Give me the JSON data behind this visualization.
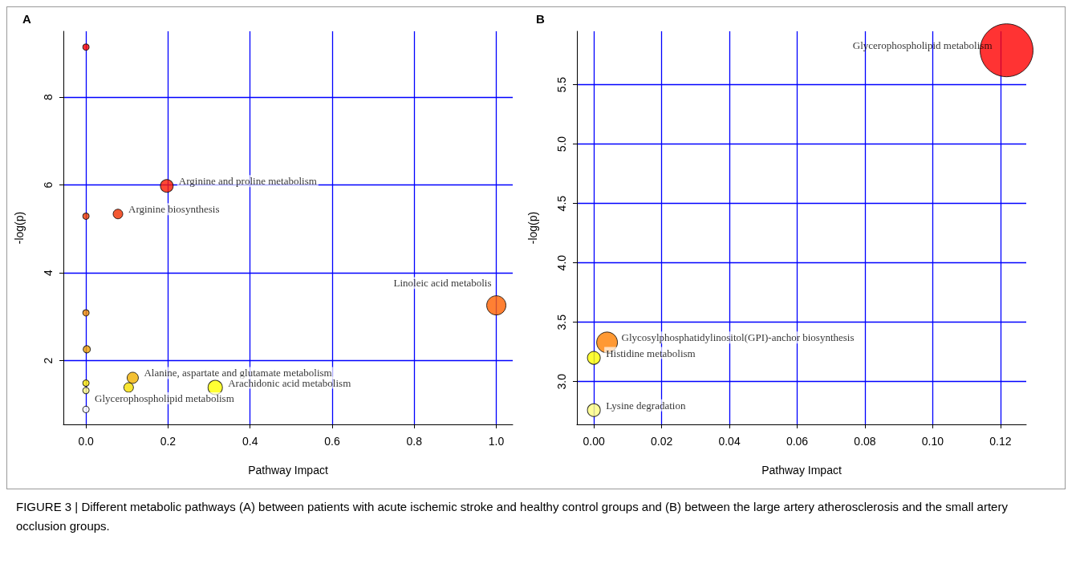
{
  "chart_data": [
    {
      "type": "bubble",
      "title": "A",
      "xlabel": "Pathway Impact",
      "ylabel": "-log(p)",
      "xlim": [
        -0.055,
        1.04
      ],
      "ylim": [
        0.55,
        9.5
      ],
      "xticks": [
        {
          "value": 0,
          "label": "0.0"
        },
        0.2,
        0.4,
        0.6,
        0.8,
        {
          "value": 1,
          "label": "1.0"
        }
      ],
      "yticks": [
        2,
        4,
        6,
        8
      ],
      "grid": true,
      "marker": "circle",
      "x": [
        0,
        0.197,
        0.078,
        0,
        1.0,
        0,
        0.002,
        0.114,
        0.104,
        0.315,
        0,
        0,
        0
      ],
      "values": [
        9.14,
        5.98,
        5.34,
        5.29,
        3.26,
        3.09,
        2.26,
        1.61,
        1.39,
        1.39,
        1.49,
        1.32,
        0.89
      ],
      "sizes": [
        0.11,
        0.44,
        0.25,
        0.11,
        1,
        0.11,
        0.14,
        0.34,
        0.25,
        0.56,
        0.11,
        0.11,
        0.11
      ],
      "colors": [
        "#ff0000",
        "#ff1a00",
        "#f03000",
        "#f03c00",
        "#ff6000",
        "#f08a00",
        "#f0a000",
        "#f0b000",
        "#f8e000",
        "#ffff00",
        "#ffe800",
        "#fff880",
        "#ffffff"
      ],
      "annotations": [
        {
          "text": "Arginine and proline metabolism",
          "x": 0.197,
          "y": 5.98
        },
        {
          "text": "Arginine biosynthesis",
          "x": 0.078,
          "y": 5.34
        },
        {
          "text": "Linoleic acid metabolis",
          "x": 1.0,
          "y": 3.26
        },
        {
          "text": "Alanine, aspartate and glutamate metabolism",
          "x": 0.114,
          "y": 1.61
        },
        {
          "text": "Arachidonic acid metabolism",
          "x": 0.315,
          "y": 1.39
        },
        {
          "text": "Glycerophospholipid metabolism",
          "x": 0,
          "y": 0.89
        },
        "FIGURE 3 | Different metabolic pathways (A) between patients with acute ischemic stroke and healthy control groups and (B) between the large artery atherosclerosis and the small artery occlusion groups."
      ]
    },
    {
      "type": "bubble",
      "title": "B",
      "xlabel": "Pathway Impact",
      "ylabel": "-log(p)",
      "xlim": [
        -0.005,
        0.1276
      ],
      "ylim": [
        2.64,
        5.95
      ],
      "xticks": [
        {
          "value": 0,
          "label": "0.00"
        },
        {
          "value": 0.02,
          "label": "0.02"
        },
        {
          "value": 0.04,
          "label": "0.04"
        },
        {
          "value": 0.06,
          "label": "0.06"
        },
        {
          "value": 0.08,
          "label": "0.08"
        },
        {
          "value": 0.1,
          "label": "0.10"
        },
        {
          "value": 0.12,
          "label": "0.12"
        }
      ],
      "yticks": [
        {
          "value": 3,
          "label": "3.0"
        },
        3.5,
        {
          "value": 4,
          "label": "4.0"
        },
        4.5,
        {
          "value": 5,
          "label": "5.0"
        },
        5.5
      ],
      "grid": true,
      "marker": "circle",
      "x": [
        0.1218,
        0.0039,
        0,
        0
      ],
      "values": [
        5.79,
        3.33,
        3.2,
        2.76
      ],
      "sizes": [
        1,
        0.155,
        0.059,
        0.059
      ],
      "colors": [
        "#ff0000",
        "#ff7f00",
        "#ffff00",
        "#ffff80"
      ],
      "annotations": [
        {
          "text": "Glycerophospholipid metabolism",
          "x": 0.1218,
          "y": 5.79
        },
        {
          "text": "Glycosylphosphatidylinositol(GPI)-anchor biosynthesis",
          "x": 0.0039,
          "y": 3.33
        },
        {
          "text": "Histidine metabolism",
          "x": 0,
          "y": 3.2
        },
        {
          "text": "Lysine degradation",
          "x": 0,
          "y": 2.76
        }
      ]
    }
  ]
}
